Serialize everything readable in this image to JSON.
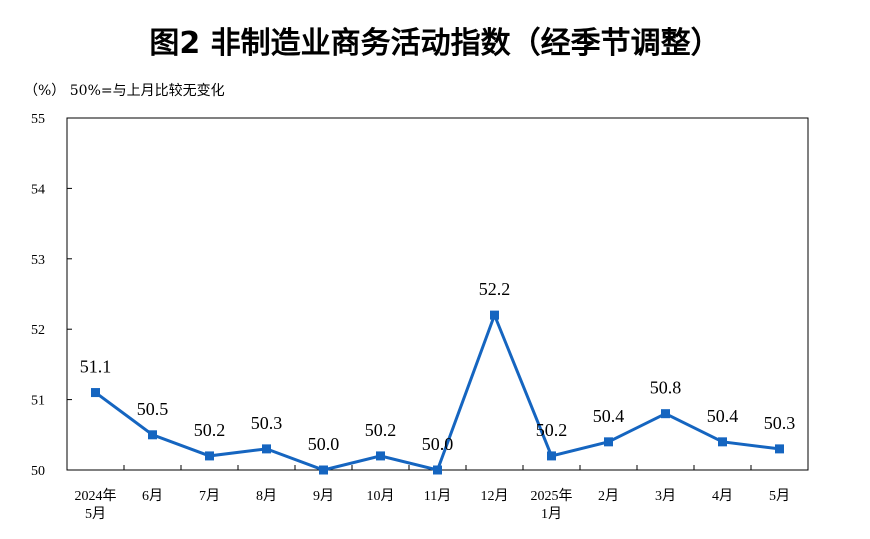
{
  "title": "图2  非制造业商务活动指数（经季节调整）",
  "unit_note": "（%）  50%=与上月比较无变化",
  "chart_data": {
    "type": "line",
    "categories": [
      "2024年\n5月",
      "6月",
      "7月",
      "8月",
      "9月",
      "10月",
      "11月",
      "12月",
      "2025年\n1月",
      "2月",
      "3月",
      "4月",
      "5月"
    ],
    "series": [
      {
        "values": [
          51.1,
          50.5,
          50.2,
          50.3,
          50.0,
          50.2,
          50.0,
          52.2,
          50.2,
          50.4,
          50.8,
          50.4,
          50.3
        ],
        "labels": [
          "51.1",
          "50.5",
          "50.2",
          "50.3",
          "50.0",
          "50.2",
          "50.0",
          "52.2",
          "50.2",
          "50.4",
          "50.8",
          "50.4",
          "50.3"
        ]
      }
    ],
    "ylim": [
      50,
      55
    ],
    "yticks": [
      "50",
      "51",
      "52",
      "53",
      "54",
      "55"
    ],
    "grid": false,
    "line_color": "#1565c0"
  }
}
